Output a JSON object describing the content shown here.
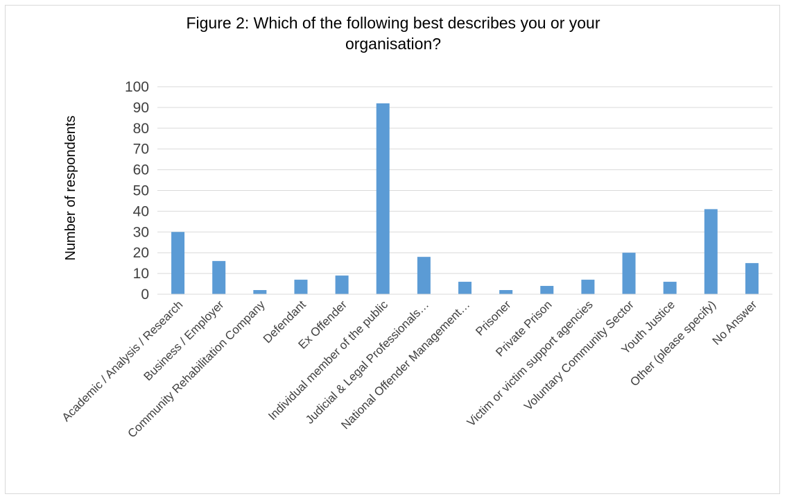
{
  "chart_data": {
    "type": "bar",
    "title": "Figure 2: Which of the following best describes you or your organisation?",
    "title_lines": [
      "Figure 2: Which of the following best describes you or your",
      "organisation?"
    ],
    "xlabel": "",
    "ylabel": "Number of respondents",
    "ylim": [
      0,
      100
    ],
    "yticks": [
      0,
      10,
      20,
      30,
      40,
      50,
      60,
      70,
      80,
      90,
      100
    ],
    "grid": true,
    "legend": "none",
    "bar_color": "#5b9bd5",
    "categories": [
      "Academic / Analysis / Research",
      "Business / Employer",
      "Community Rehabilitation Company",
      "Defendant",
      "Ex Offender",
      "Individual member of the public",
      "Judicial & Legal Professionals…",
      "National Offender Management…",
      "Prisoner",
      "Private Prison",
      "Victim or victim support agencies",
      "Voluntary Community Sector",
      "Youth Justice",
      "Other (please specify)",
      "No Answer"
    ],
    "values": [
      30,
      16,
      2,
      7,
      9,
      92,
      18,
      6,
      2,
      4,
      7,
      20,
      6,
      41,
      15
    ]
  }
}
